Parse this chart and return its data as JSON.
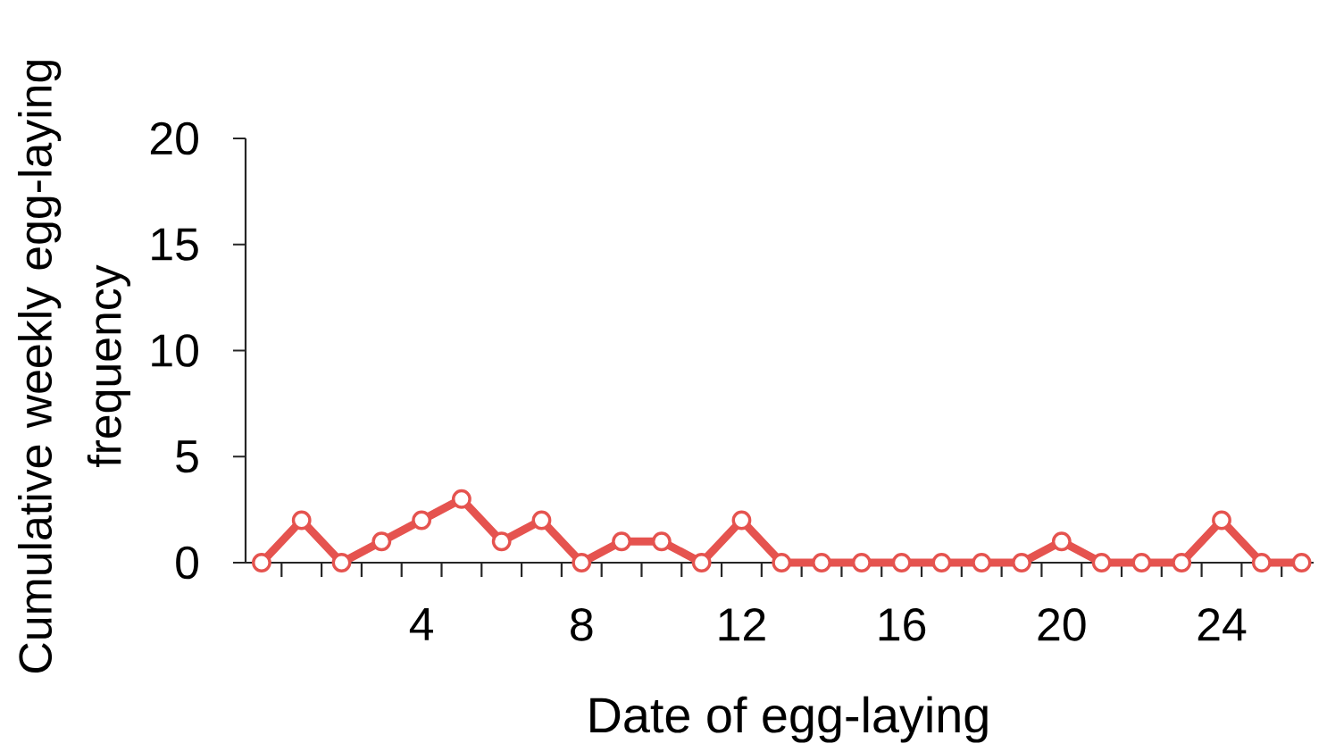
{
  "chart_data": {
    "type": "line",
    "xlabel": "Date of egg-laying",
    "ylabel": "Cumulative weekly egg-laying frequency",
    "categories": [
      null,
      null,
      null,
      null,
      "4",
      null,
      null,
      null,
      "8",
      null,
      null,
      null,
      "12",
      null,
      null,
      null,
      "16",
      null,
      null,
      null,
      "20",
      null,
      null,
      null,
      "24",
      null,
      null
    ],
    "values": [
      0,
      2,
      0,
      1,
      2,
      3,
      1,
      2,
      0,
      1,
      1,
      0,
      2,
      0,
      0,
      0,
      0,
      0,
      0,
      0,
      1,
      0,
      0,
      0,
      2,
      0,
      0
    ],
    "color": "#e5534f",
    "ylim": [
      0,
      20
    ],
    "yticks": [
      0,
      5,
      10,
      15,
      20
    ],
    "marker": "circle",
    "line_style": "solid"
  }
}
